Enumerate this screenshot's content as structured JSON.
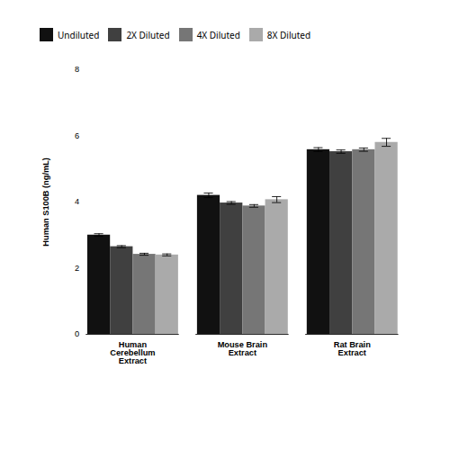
{
  "chart_data": {
    "type": "bar",
    "categories": [
      "Human\nCerebellum\nExtract",
      "Mouse Brain\nExtract",
      "Rat Brain\nExtract"
    ],
    "series": [
      {
        "name": "Undiluted",
        "color": "#111111",
        "values": [
          3.0,
          4.2,
          5.58
        ],
        "errors": [
          0.04,
          0.07,
          0.06
        ]
      },
      {
        "name": "2X Diluted",
        "color": "#404040",
        "values": [
          2.65,
          3.97,
          5.52
        ],
        "errors": [
          0.03,
          0.04,
          0.05
        ]
      },
      {
        "name": "4X Diluted",
        "color": "#767676",
        "values": [
          2.42,
          3.88,
          5.58
        ],
        "errors": [
          0.03,
          0.04,
          0.05
        ]
      },
      {
        "name": "8X Diluted",
        "color": "#aaaaaa",
        "values": [
          2.4,
          4.07,
          5.8
        ],
        "errors": [
          0.03,
          0.09,
          0.12
        ]
      }
    ],
    "ylabel": "Human S100B (ng/mL)",
    "ylim": [
      0,
      8
    ],
    "yticks": [
      0,
      2,
      4,
      6,
      8
    ],
    "grid": false,
    "legend": "upper left"
  }
}
